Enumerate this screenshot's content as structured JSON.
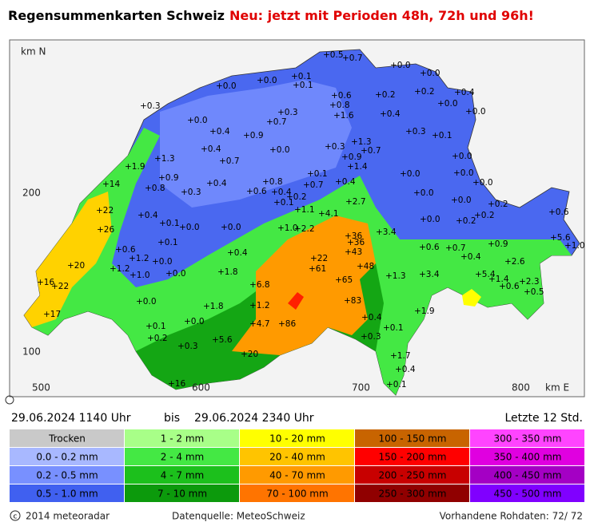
{
  "header": {
    "title": "Regensummenkarten Schweiz",
    "highlight": "Neu: jetzt mit Perioden 48h, 72h und 96h!"
  },
  "axes": {
    "north_label": "km N",
    "y_labels": [
      "200",
      "100"
    ],
    "x_labels": [
      "500",
      "600",
      "700",
      "800"
    ],
    "east_label": "km E"
  },
  "stations": [
    "+0.5",
    "+0.7",
    "+0.1",
    "+0.0",
    "+0.1",
    "+0.0",
    "+0.0",
    "+0.0",
    "+0.6",
    "+0.2",
    "+0.2",
    "+0.4",
    "+0.0",
    "+0.3",
    "+0.8",
    "+1.6",
    "+0.3",
    "+0.7",
    "+0.4",
    "+0.0",
    "+0.0",
    "+0.4",
    "+0.9",
    "+0.3",
    "+0.1",
    "+0.0",
    "+0.3",
    "+1.3",
    "+0.7",
    "+0.4",
    "+0.0",
    "+1.3",
    "+0.7",
    "+0.9",
    "+1.4",
    "+1.9",
    "+0.0",
    "+0.0",
    "+0.9",
    "+0.8",
    "+0.1",
    "+0.7",
    "+0.4",
    "+0.0",
    "+0.8",
    "+0.4",
    "+0.3",
    "+0.6",
    "+0.4",
    "+0.2",
    "+14",
    "+0.1",
    "+0.0",
    "+0.0",
    "+2.7",
    "+0.2",
    "+1.1",
    "+4.1",
    "+0.2",
    "+0.6",
    "+22",
    "+0.4",
    "+0.0",
    "+0.2",
    "+0.1",
    "+0.0",
    "+0.0",
    "+1.0",
    "+2.2",
    "+3.4",
    "+26",
    "+36",
    "+36",
    "+0.1",
    "+5.6",
    "+1.0",
    "+0.6",
    "+0.7",
    "+0.9",
    "+0.6",
    "+1.2",
    "+0.0",
    "+0.4",
    "+43",
    "+22",
    "+0.4",
    "+2.6",
    "+20",
    "+1.2",
    "+48",
    "+61",
    "+1.0",
    "+0.0",
    "+1.8",
    "+1.3",
    "+3.4",
    "+5.4",
    "+1.4",
    "+2.3",
    "+16",
    "+22",
    "+6.8",
    "+65",
    "+0.6",
    "+0.5",
    "+0.0",
    "+1.8",
    "+1.2",
    "+83",
    "+1.9",
    "+17",
    "+0.0",
    "+4.7",
    "+86",
    "+0.4",
    "+0.1",
    "+0.1",
    "+0.3",
    "+0.2",
    "+5.6",
    "+0.3",
    "+20",
    "+1.7",
    "+0.4",
    "+0.1",
    "+16"
  ],
  "period": {
    "start": "29.06.2024 1140 Uhr",
    "separator": "bis",
    "end": "29.06.2024 2340 Uhr",
    "duration": "Letzte 12 Std."
  },
  "legend": [
    {
      "label": "Trocken",
      "color": "#c9c9c9"
    },
    {
      "label": "0.0 - 0.2 mm",
      "color": "#a8b8ff"
    },
    {
      "label": "0.2 - 0.5 mm",
      "color": "#7890ff"
    },
    {
      "label": "0.5 - 1.0 mm",
      "color": "#4060f0"
    },
    {
      "label": "1 - 2 mm",
      "color": "#a8ff88"
    },
    {
      "label": "2 - 4 mm",
      "color": "#44e844"
    },
    {
      "label": "4 - 7 mm",
      "color": "#1cc01c"
    },
    {
      "label": "7 - 10 mm",
      "color": "#0c9a0c"
    },
    {
      "label": "10 - 20 mm",
      "color": "#ffff00"
    },
    {
      "label": "20 - 40 mm",
      "color": "#ffc400"
    },
    {
      "label": "40 - 70 mm",
      "color": "#ff9a00"
    },
    {
      "label": "70 - 100 mm",
      "color": "#ff7400"
    },
    {
      "label": "100 - 150 mm",
      "color": "#c86400"
    },
    {
      "label": "150 - 200 mm",
      "color": "#ff0000"
    },
    {
      "label": "200 - 250 mm",
      "color": "#c80000"
    },
    {
      "label": "250 - 300 mm",
      "color": "#900000"
    },
    {
      "label": "300 - 350 mm",
      "color": "#ff44ff"
    },
    {
      "label": "350 - 400 mm",
      "color": "#e000e0"
    },
    {
      "label": "400 - 450 mm",
      "color": "#a400c4"
    },
    {
      "label": "450 - 500 mm",
      "color": "#8000ff"
    }
  ],
  "footer": {
    "copyright": "2014 meteoradar",
    "source": "Datenquelle: MeteoSchweiz",
    "raw_data": "Vorhandene Rohdaten:  72/ 72"
  }
}
